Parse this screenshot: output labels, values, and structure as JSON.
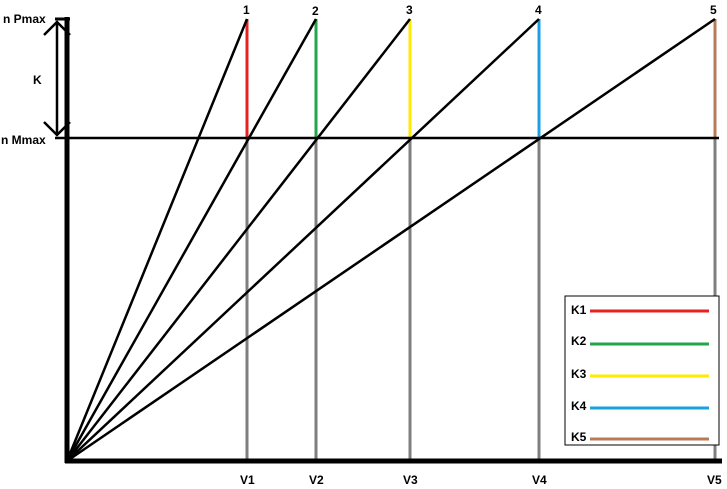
{
  "labels": {
    "y_top": "n Pmax",
    "y_mid": "n Mmax",
    "k": "K"
  },
  "gears": [
    {
      "top_label": "1",
      "bottom_label": "V1",
      "legend": "K1",
      "color": "#e32222"
    },
    {
      "top_label": "2",
      "bottom_label": "V2",
      "legend": "K2",
      "color": "#22a64a"
    },
    {
      "top_label": "3",
      "bottom_label": "V3",
      "legend": "K3",
      "color": "#ffea00"
    },
    {
      "top_label": "4",
      "bottom_label": "V4",
      "legend": "K4",
      "color": "#1ba1e2"
    },
    {
      "top_label": "5",
      "bottom_label": "V5",
      "legend": "K5",
      "color": "#b97a57"
    }
  ]
}
